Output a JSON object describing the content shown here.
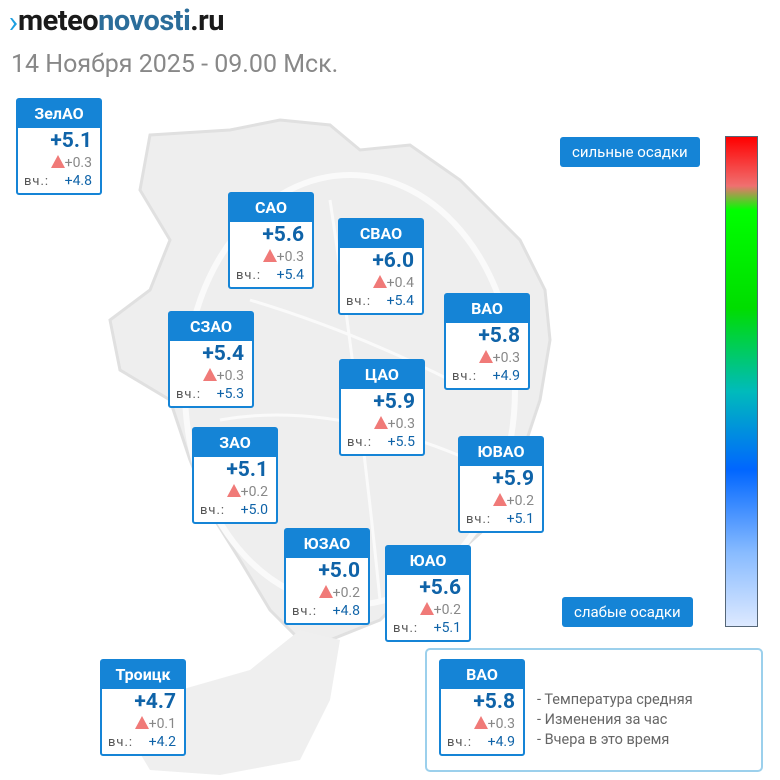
{
  "header": {
    "logo": {
      "part1": "meteo",
      "part2": "novosti",
      "part3": ".ru"
    },
    "date": "14 Ноября 2025 - 09.00 Мск."
  },
  "yesterday_label": "вч.:",
  "districts": [
    {
      "name": "ЗелАО",
      "temp": "+5.1",
      "change": "+0.3",
      "yesterday": "+4.8"
    },
    {
      "name": "САО",
      "temp": "+5.6",
      "change": "+0.3",
      "yesterday": "+5.4"
    },
    {
      "name": "СВАО",
      "temp": "+6.0",
      "change": "+0.4",
      "yesterday": "+5.4"
    },
    {
      "name": "ВАО",
      "temp": "+5.8",
      "change": "+0.3",
      "yesterday": "+4.9"
    },
    {
      "name": "СЗАО",
      "temp": "+5.4",
      "change": "+0.3",
      "yesterday": "+5.3"
    },
    {
      "name": "ЦАО",
      "temp": "+5.9",
      "change": "+0.3",
      "yesterday": "+5.5"
    },
    {
      "name": "ЗАО",
      "temp": "+5.1",
      "change": "+0.2",
      "yesterday": "+5.0"
    },
    {
      "name": "ЮВАО",
      "temp": "+5.9",
      "change": "+0.2",
      "yesterday": "+5.1"
    },
    {
      "name": "ЮЗАО",
      "temp": "+5.0",
      "change": "+0.2",
      "yesterday": "+4.8"
    },
    {
      "name": "ЮАО",
      "temp": "+5.6",
      "change": "+0.2",
      "yesterday": "+5.1"
    },
    {
      "name": "Троицк",
      "temp": "+4.7",
      "change": "+0.1",
      "yesterday": "+4.2"
    }
  ],
  "scale": {
    "top": "сильные осадки",
    "bottom": "слабые осадки"
  },
  "legend": {
    "sample": {
      "name": "ВАО",
      "temp": "+5.8",
      "change": "+0.3",
      "yesterday": "+4.9"
    },
    "items": [
      "- Температура средняя",
      "- Изменения за час",
      "- Вчера в это время"
    ]
  }
}
